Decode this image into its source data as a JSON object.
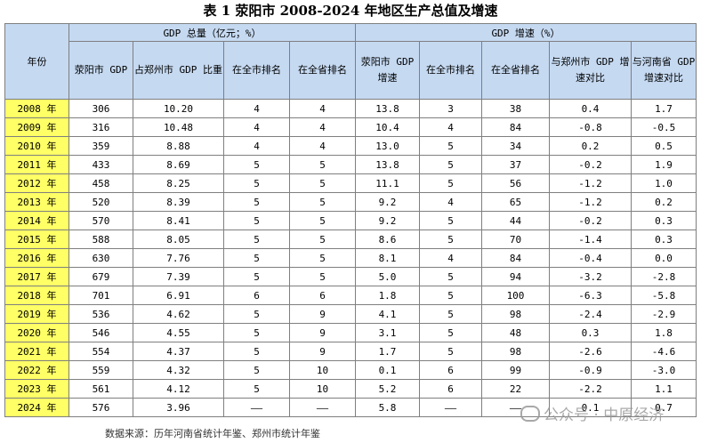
{
  "title": "表 1 荥阳市 2008-2024 年地区生产总值及增速",
  "header": {
    "year_col": "年份",
    "group1": "GDP 总量（亿元；%）",
    "group2": "GDP 增速（%）",
    "cols": [
      "荥阳市 GDP",
      "占郑州市 GDP 比重",
      "在全市排名",
      "在全省排名",
      "荥阳市 GDP 增速",
      "在全市排名",
      "在全省排名",
      "与郑州市 GDP 增速对比",
      "与河南省 GDP 增速对比"
    ]
  },
  "rows": [
    [
      "2008 年",
      "306",
      "10.20",
      "4",
      "4",
      "13.8",
      "3",
      "38",
      "0.4",
      "1.7"
    ],
    [
      "2009 年",
      "316",
      "10.48",
      "4",
      "4",
      "10.4",
      "4",
      "84",
      "-0.8",
      "-0.5"
    ],
    [
      "2010 年",
      "359",
      "8.88",
      "4",
      "4",
      "13.0",
      "5",
      "34",
      "0.2",
      "0.5"
    ],
    [
      "2011 年",
      "433",
      "8.69",
      "5",
      "5",
      "13.8",
      "5",
      "37",
      "-0.2",
      "1.9"
    ],
    [
      "2012 年",
      "458",
      "8.25",
      "5",
      "5",
      "11.1",
      "5",
      "56",
      "-1.2",
      "1.0"
    ],
    [
      "2013 年",
      "520",
      "8.39",
      "5",
      "5",
      "9.2",
      "4",
      "65",
      "-1.2",
      "0.2"
    ],
    [
      "2014 年",
      "570",
      "8.41",
      "5",
      "5",
      "9.2",
      "5",
      "44",
      "-0.2",
      "0.3"
    ],
    [
      "2015 年",
      "588",
      "8.05",
      "5",
      "5",
      "8.6",
      "5",
      "70",
      "-1.4",
      "0.3"
    ],
    [
      "2016 年",
      "630",
      "7.76",
      "5",
      "5",
      "8.1",
      "4",
      "84",
      "-0.4",
      "0.0"
    ],
    [
      "2017 年",
      "679",
      "7.39",
      "5",
      "5",
      "5.0",
      "5",
      "94",
      "-3.2",
      "-2.8"
    ],
    [
      "2018 年",
      "701",
      "6.91",
      "6",
      "6",
      "1.8",
      "5",
      "100",
      "-6.3",
      "-5.8"
    ],
    [
      "2019 年",
      "536",
      "4.62",
      "5",
      "9",
      "4.1",
      "5",
      "98",
      "-2.4",
      "-2.9"
    ],
    [
      "2020 年",
      "546",
      "4.55",
      "5",
      "9",
      "3.1",
      "5",
      "48",
      "0.3",
      "1.8"
    ],
    [
      "2021 年",
      "554",
      "4.37",
      "5",
      "9",
      "1.7",
      "5",
      "98",
      "-2.6",
      "-4.6"
    ],
    [
      "2022 年",
      "559",
      "4.32",
      "5",
      "10",
      "0.1",
      "6",
      "99",
      "-0.9",
      "-3.0"
    ],
    [
      "2023 年",
      "561",
      "4.12",
      "5",
      "10",
      "5.2",
      "6",
      "22",
      "-2.2",
      "1.1"
    ],
    [
      "2024 年",
      "576",
      "3.96",
      "——",
      "——",
      "5.8",
      "——",
      "——",
      "0.1",
      "0.7"
    ]
  ],
  "source": "数据来源：历年河南省统计年鉴、郑州市统计年鉴",
  "watermark": "公众号 · 中原经济"
}
